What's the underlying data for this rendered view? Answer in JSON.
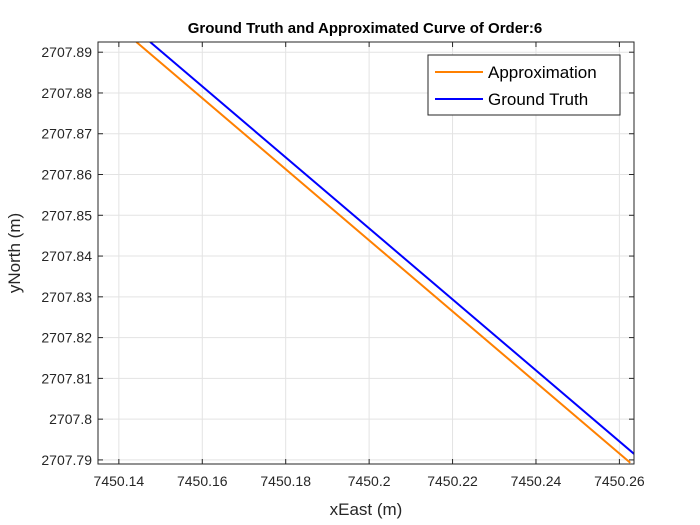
{
  "chart_data": {
    "type": "line",
    "title": "Ground Truth and Approximated Curve of Order:6",
    "xlabel": "xEast (m)",
    "ylabel": "yNorth (m)",
    "xlim": [
      7450.135,
      7450.2635
    ],
    "ylim": [
      2707.789,
      2707.8925
    ],
    "xticks": [
      7450.14,
      7450.16,
      7450.18,
      7450.2,
      7450.22,
      7450.24,
      7450.26
    ],
    "xtick_labels": [
      "7450.14",
      "7450.16",
      "7450.18",
      "7450.2",
      "7450.22",
      "7450.24",
      "7450.26"
    ],
    "yticks": [
      2707.79,
      2707.8,
      2707.81,
      2707.82,
      2707.83,
      2707.84,
      2707.85,
      2707.86,
      2707.87,
      2707.88,
      2707.89
    ],
    "ytick_labels": [
      "2707.79",
      "2707.8",
      "2707.81",
      "2707.82",
      "2707.83",
      "2707.84",
      "2707.85",
      "2707.86",
      "2707.87",
      "2707.88",
      "2707.89"
    ],
    "grid": true,
    "legend_position": "top-right",
    "series": [
      {
        "name": "Approximation",
        "color": "#ff8000",
        "x": [
          7450.1442,
          7450.2626
        ],
        "y": [
          2707.8925,
          2707.7893
        ]
      },
      {
        "name": "Ground Truth",
        "color": "#0000ff",
        "x": [
          7450.1475,
          7450.2635
        ],
        "y": [
          2707.8925,
          2707.7915
        ]
      }
    ]
  }
}
